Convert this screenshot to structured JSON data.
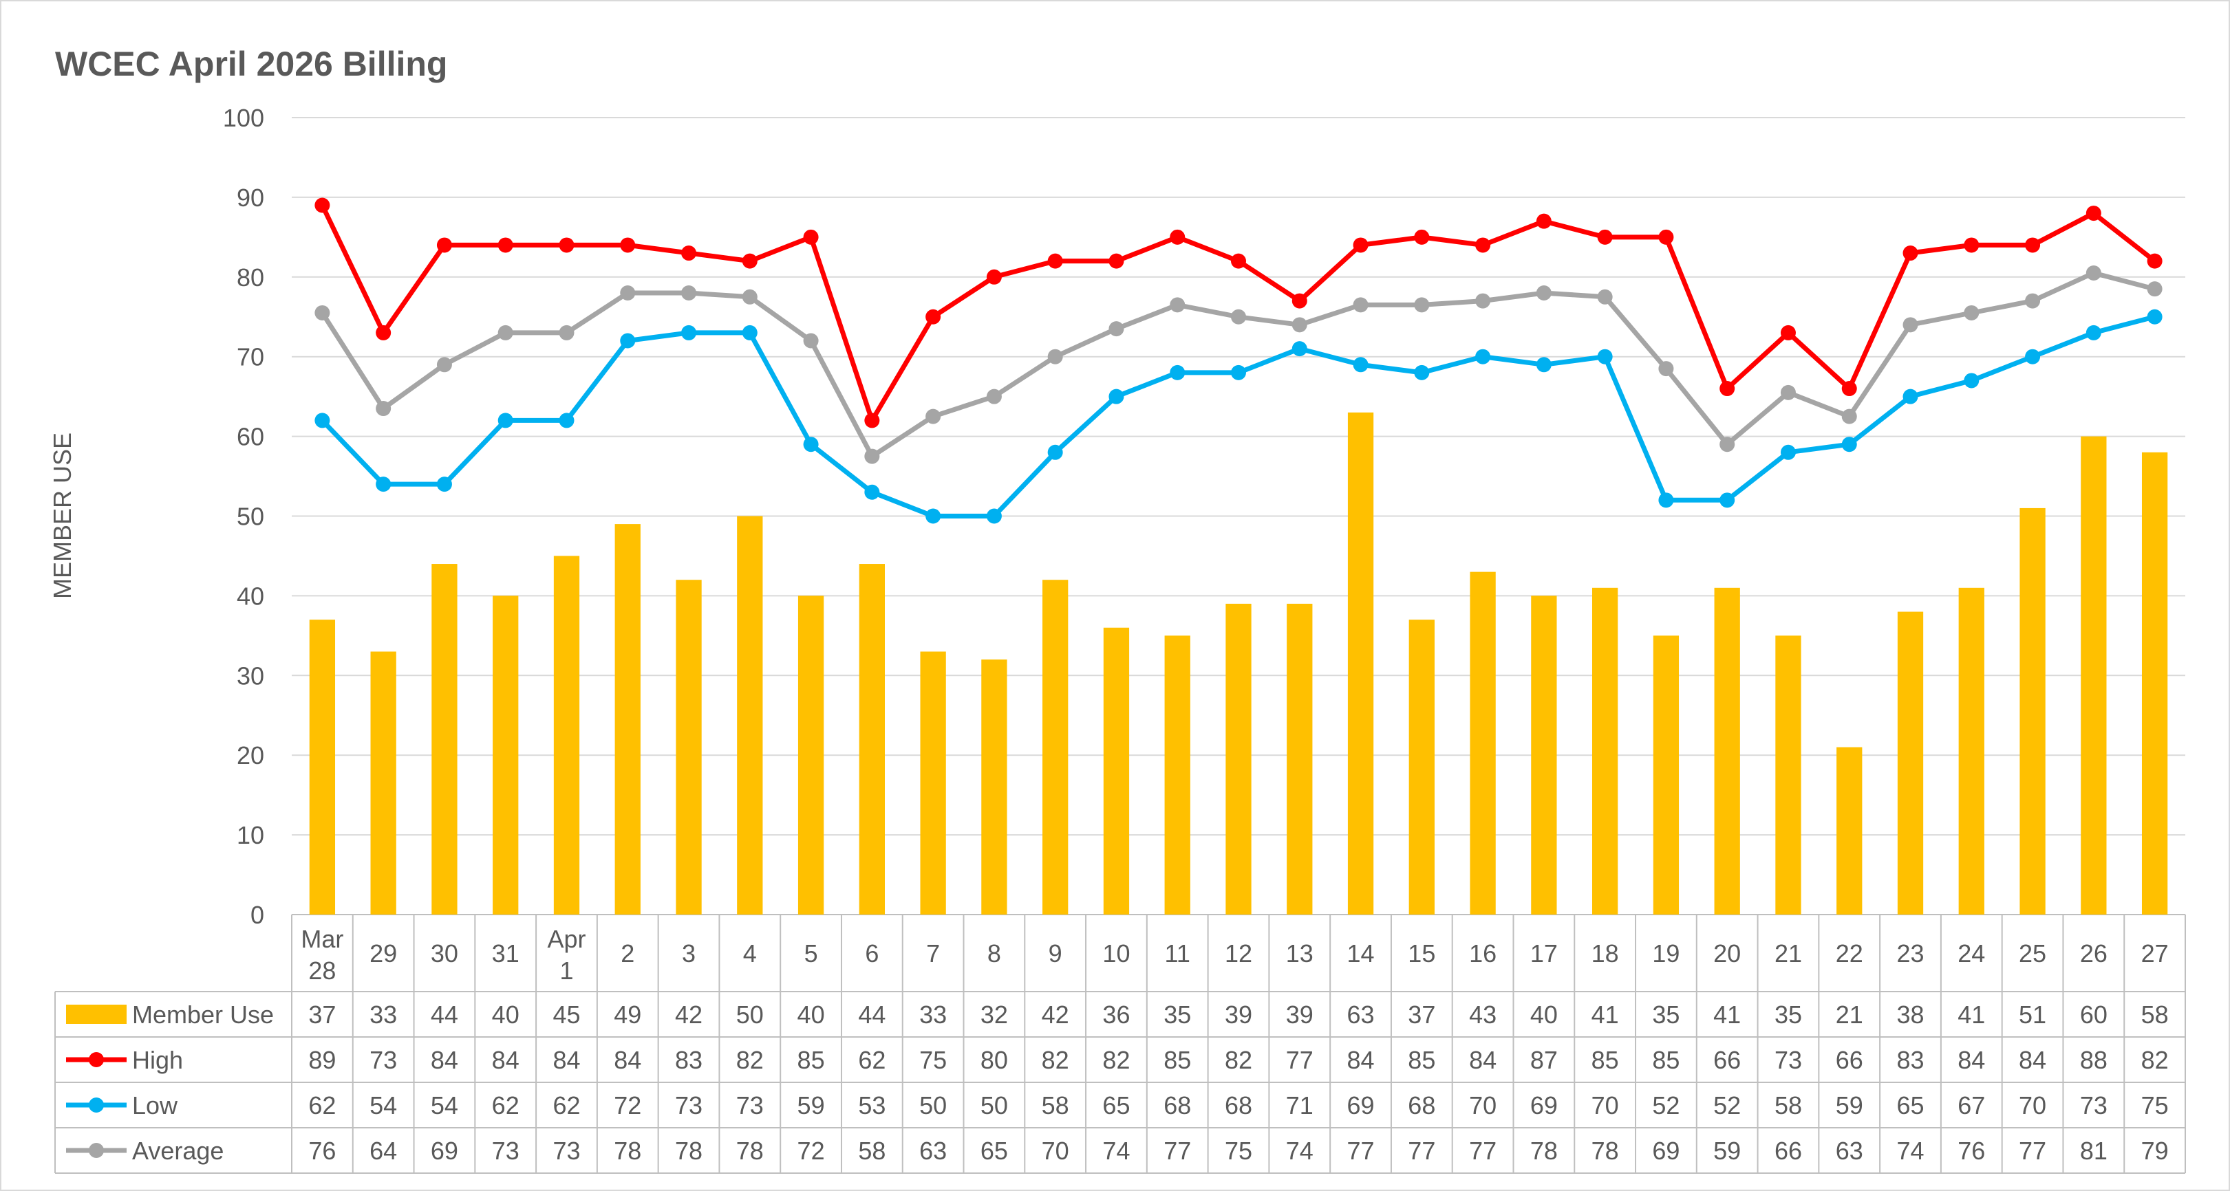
{
  "chart_data": {
    "type": "bar",
    "title": "WCEC April 2026 Billing",
    "ylabel": "MEMBER USE",
    "xlabel": "",
    "ylim": [
      0,
      100
    ],
    "yticks": [
      0,
      10,
      20,
      30,
      40,
      50,
      60,
      70,
      80,
      90,
      100
    ],
    "grid": true,
    "legend_placement": "data-table-left",
    "categories": [
      [
        "Mar",
        "28"
      ],
      [
        "29"
      ],
      [
        "30"
      ],
      [
        "31"
      ],
      [
        "Apr",
        "1"
      ],
      [
        "2"
      ],
      [
        "3"
      ],
      [
        "4"
      ],
      [
        "5"
      ],
      [
        "6"
      ],
      [
        "7"
      ],
      [
        "8"
      ],
      [
        "9"
      ],
      [
        "10"
      ],
      [
        "11"
      ],
      [
        "12"
      ],
      [
        "13"
      ],
      [
        "14"
      ],
      [
        "15"
      ],
      [
        "16"
      ],
      [
        "17"
      ],
      [
        "18"
      ],
      [
        "19"
      ],
      [
        "20"
      ],
      [
        "21"
      ],
      [
        "22"
      ],
      [
        "23"
      ],
      [
        "24"
      ],
      [
        "25"
      ],
      [
        "26"
      ],
      [
        "27"
      ]
    ],
    "series": [
      {
        "name": "Member Use",
        "type": "bar",
        "color": "#FFC000",
        "values": [
          37,
          33,
          44,
          40,
          45,
          49,
          42,
          50,
          40,
          44,
          33,
          32,
          42,
          36,
          35,
          39,
          39,
          63,
          37,
          43,
          40,
          41,
          35,
          41,
          35,
          21,
          38,
          41,
          51,
          60,
          58
        ]
      },
      {
        "name": "High",
        "type": "line",
        "color": "#FF0000",
        "values": [
          89,
          73,
          84,
          84,
          84,
          84,
          83,
          82,
          85,
          62,
          75,
          80,
          82,
          82,
          85,
          82,
          77,
          84,
          85,
          84,
          87,
          85,
          85,
          66,
          73,
          66,
          83,
          84,
          84,
          88,
          82
        ]
      },
      {
        "name": "Low",
        "type": "line",
        "color": "#00B0F0",
        "values": [
          62,
          54,
          54,
          62,
          62,
          72,
          73,
          73,
          59,
          53,
          50,
          50,
          58,
          65,
          68,
          68,
          71,
          69,
          68,
          70,
          69,
          70,
          52,
          52,
          58,
          59,
          65,
          67,
          70,
          73,
          75
        ]
      },
      {
        "name": "Average",
        "type": "line",
        "color": "#A5A5A5",
        "values": [
          75.5,
          63.5,
          69,
          73,
          73,
          78,
          78,
          77.5,
          72,
          57.5,
          62.5,
          65,
          70,
          73.5,
          76.5,
          75,
          74,
          76.5,
          76.5,
          77,
          78,
          77.5,
          68.5,
          59,
          65.5,
          62.5,
          74,
          75.5,
          77,
          80.5,
          78.5
        ],
        "table_values": [
          76,
          64,
          69,
          73,
          73,
          78,
          78,
          78,
          72,
          58,
          63,
          65,
          70,
          74,
          77,
          75,
          74,
          77,
          77,
          77,
          78,
          78,
          69,
          59,
          66,
          63,
          74,
          76,
          77,
          81,
          79
        ]
      }
    ]
  }
}
